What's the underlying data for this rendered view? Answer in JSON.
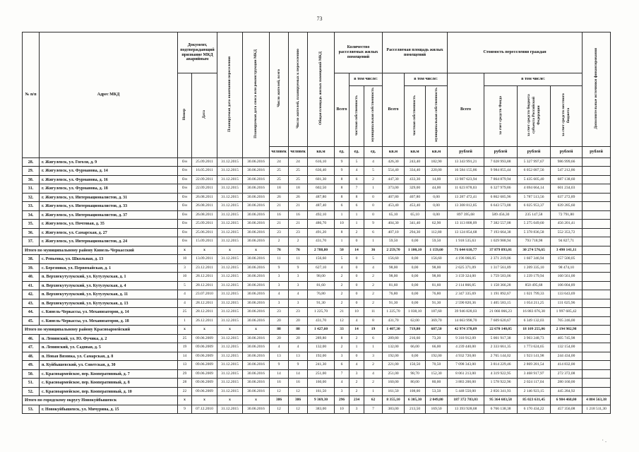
{
  "page_number": "73",
  "scan_artifact": "· .",
  "table": {
    "header": {
      "num": "№ п/п",
      "address": "Адрес МКД",
      "doc_group": "Документ, подтверждающий признание МКД аварийным",
      "doc_number": "Номер",
      "doc_date": "Дата",
      "resettle_end_date": "Планируемая дата окончания переселения",
      "demolition_date": "Планируемая дата сноса или реконструкции МКД",
      "residents_total": "Число жителей, всего",
      "residents_planned": "Число жителей, планируемых к переселению",
      "total_area": "Общая площадь жилых помещений МКД",
      "units_group": "Количество расселяемых жилых помещений",
      "area_group": "Расселяемая площадь жилых помещений",
      "cost_group": "Стоимость переселения граждан",
      "extra_sources": "Дополнительные источники финансирования",
      "total_label": "Всего",
      "including_label": "в том числе:",
      "private_label": "частная собственность",
      "municipal_label": "муниципальная собственность",
      "fund_label": "за счет средств Фонда",
      "region_label": "за счет средств бюджета субъекта Российской Федерации",
      "local_label": "за счет средств местного бюджета",
      "units": [
        "человек",
        "человек",
        "кв.м",
        "ед.",
        "ед.",
        "ед.",
        "кв.м",
        "кв.м",
        "кв.м",
        "рублей",
        "рублей",
        "рублей",
        "рублей",
        "рублей"
      ]
    },
    "rows": [
      {
        "type": "data",
        "cells": [
          "28.",
          "г. Жигулевск, ул. Гоголя, д. 9",
          "б/н",
          "25.09.2011",
          "31.12.2015",
          "30.06.2016",
          "24",
          "24",
          "616,10",
          "9",
          "5",
          "4",
          "426,30",
          "243,40",
          "182,90",
          "13 343 991,21",
          "7 028 993,88",
          "5 327 997,67",
          "986 999,66",
          ""
        ]
      },
      {
        "type": "data",
        "cells": [
          "29.",
          "г. Жигулевск, ул. Фурманова, д. 14",
          "б/н",
          "16.05.2011",
          "31.12.2015",
          "30.06.2016",
          "25",
          "25",
          "636,40",
          "9",
          "4",
          "5",
          "554,40",
          "334,40",
          "220,00",
          "16 584 155,86",
          "9 984 855,44",
          "6 052 087,56",
          "547 212,86",
          ""
        ]
      },
      {
        "type": "data",
        "cells": [
          "30.",
          "г. Жигулевск, ул. Фурманова, д. 16",
          "б/н",
          "22.09.2011",
          "31.12.2015",
          "30.06.2016",
          "25",
          "25",
          "601,30",
          "8",
          "6",
          "2",
          "447,30",
          "433,30",
          "14,00",
          "13 987 623,94",
          "7 864 879,94",
          "5 435 605,40",
          "687 138,60",
          ""
        ]
      },
      {
        "type": "data",
        "cells": [
          "31.",
          "г. Жигулевск, ул. Фурманова, д. 18",
          "б/н",
          "22.09.2011",
          "31.12.2015",
          "30.06.2016",
          "18",
          "18",
          "602,50",
          "8",
          "7",
          "1",
          "373,00",
          "329,00",
          "44,00",
          "11 623 878,03",
          "6 327 979,86",
          "4 694 664,14",
          "601 234,03",
          ""
        ]
      },
      {
        "type": "data",
        "cells": [
          "32.",
          "г. Жигулевск, ул. Интернационалистов, д. 31",
          "б/н",
          "26.08.2011",
          "31.12.2015",
          "30.06.2016",
          "26",
          "26",
          "487,80",
          "8",
          "8",
          "0",
          "407,80",
          "407,80",
          "0,00",
          "13 287 472,41",
          "6 862 685,96",
          "5 787 513,56",
          "637 272,89",
          ""
        ]
      },
      {
        "type": "data",
        "cells": [
          "33.",
          "г. Жигулевск, ул. Интернационалистов, д. 33",
          "б/н",
          "26.08.2011",
          "31.12.2015",
          "30.06.2016",
          "21",
          "21",
          "487,40",
          "6",
          "6",
          "0",
          "453,40",
          "453,40",
          "0,00",
          "13 308 812,85",
          "6 643 573,88",
          "6 025 953,37",
          "639 285,60",
          ""
        ]
      },
      {
        "type": "data",
        "cells": [
          "34.",
          "г. Жигулевск, ул. Интернационалистов, д. 37",
          "б/н",
          "26.08.2011",
          "31.12.2015",
          "30.06.2016",
          "16",
          "16",
          "492,10",
          "1",
          "1",
          "0",
          "65,10",
          "65,10",
          "0,00",
          "897 395,68",
          "589 456,30",
          "235 147,58",
          "72 791,80",
          ""
        ]
      },
      {
        "type": "data",
        "cells": [
          "35.",
          "г. Жигулевск, ул. Почтовая, д. 35",
          "б/н",
          "25.09.2011",
          "31.12.2015",
          "30.06.2016",
          "21",
          "21",
          "486,70",
          "10",
          "1",
          "9",
          "404,30",
          "341,40",
          "62,90",
          "13 113 808,09",
          "7 382 557,08",
          "5 275 049,60",
          "456 201,41",
          ""
        ]
      },
      {
        "type": "data",
        "cells": [
          "36.",
          "г. Жигулевск, ул. Самарская, д. 27",
          "б/н",
          "25.06.2011",
          "31.12.2015",
          "30.06.2016",
          "23",
          "23",
          "491,20",
          "8",
          "2",
          "6",
          "407,10",
          "294,30",
          "112,80",
          "13 124 854,68",
          "7 193 664,38",
          "5 378 836,58",
          "552 353,72",
          ""
        ]
      },
      {
        "type": "data",
        "cells": [
          "37.",
          "г. Жигулевск, ул. Интернационалистов, д. 24",
          "б/н",
          "15.09.2011",
          "31.12.2015",
          "30.06.2016",
          "2",
          "2",
          "431,70",
          "1",
          "0",
          "1",
          "59,50",
          "0,00",
          "59,50",
          "1 918 535,63",
          "1 029 988,94",
          "793 718,98",
          "94 827,71",
          ""
        ]
      },
      {
        "type": "total",
        "cells": [
          "Итого по муниципальному району Кинель-Черкасский",
          "х",
          "х",
          "х",
          "х",
          "76",
          "76",
          "2 788,80",
          "50",
          "14",
          "36",
          "2 259,70",
          "1 100,10",
          "1 159,60",
          "71 644 610,77",
          "37 879 893,01",
          "30 274 576,65",
          "3 490 141,11",
          ""
        ]
      },
      {
        "type": "data",
        "cells": [
          "38.",
          "с. Репьевка, ул. Школьная, д. 13",
          "10",
          "13.09.2011",
          "31.12.2015",
          "30.06.2016",
          "11",
          "11",
          "156,60",
          "5",
          "0",
          "5",
          "156,60",
          "0,00",
          "156,60",
          "4 196 066,05",
          "2 371 219,06",
          "1 667 346,94",
          "157 500,05",
          ""
        ]
      },
      {
        "type": "data",
        "cells": [
          "39.",
          "с. Березняки, ул. Первомайская, д. 1",
          "3",
          "23.12.2011",
          "31.12.2015",
          "30.06.2016",
          "9",
          "9",
          "627,10",
          "4",
          "0",
          "4",
          "98,00",
          "0,00",
          "98,00",
          "2 625 371,09",
          "1 317 561,89",
          "1 209 335,10",
          "98 474,10",
          ""
        ]
      },
      {
        "type": "data",
        "cells": [
          "40.",
          "п. Верхнекутулукский, ул. Кутулукская, д. 1",
          "10",
          "28.12.2011",
          "31.12.2015",
          "30.06.2016",
          "3",
          "3",
          "98,00",
          "2",
          "0",
          "2",
          "98,00",
          "0,00",
          "98,00",
          "3 159 324,00",
          "1 759 583,06",
          "1 239 179,94",
          "160 561,00",
          ""
        ]
      },
      {
        "type": "data",
        "cells": [
          "41.",
          "п. Верхнекутулукский, ул. Кутулукская, д. 4",
          "5",
          "28.12.2011",
          "31.12.2015",
          "30.06.2016",
          "3",
          "3",
          "81,60",
          "2",
          "0",
          "2",
          "81,60",
          "0,00",
          "81,60",
          "2 114 866,85",
          "1 158 366,28",
          "850 495,68",
          "106 004,89",
          ""
        ]
      },
      {
        "type": "data",
        "cells": [
          "42.",
          "п. Верхнекутулукский, ул. Кутулукская, д. 11",
          "4",
          "23.07.2010",
          "31.12.2015",
          "30.06.2016",
          "4",
          "4",
          "76,80",
          "2",
          "0",
          "2",
          "76,80",
          "0,00",
          "76,80",
          "2 347 335,69",
          "1 191 892,67",
          "1 021 799,33",
          "133 643,69",
          ""
        ]
      },
      {
        "type": "data",
        "cells": [
          "43.",
          "п. Верхнекутулукский, ул. Кутулукская, д. 13",
          "4",
          "28.12.2011",
          "31.12.2015",
          "30.06.2016",
          "3",
          "3",
          "91,30",
          "2",
          "0",
          "2",
          "91,30",
          "0,00",
          "91,30",
          "2 590 820,36",
          "1 405 583,15",
          "1 054 211,25",
          "131 025,96",
          ""
        ]
      },
      {
        "type": "data",
        "cells": [
          "44.",
          "с. Кинель-Черкассы, ул. Механизаторов, д. 14",
          "25",
          "28.12.2011",
          "31.12.2015",
          "30.06.2016",
          "23",
          "23",
          "1 225,70",
          "21",
          "10",
          "11",
          "1 225,70",
          "1 038,10",
          "187,60",
          "39 946 828,03",
          "21 066 066,23",
          "16 883 076,38",
          "1 997 685,42",
          ""
        ]
      },
      {
        "type": "data",
        "cells": [
          "45.",
          "с. Кинель-Черкассы, ул. Механизаторов, д. 18",
          "1",
          "26.12.2011",
          "31.12.2015",
          "30.06.2016",
          "20",
          "20",
          "431,70",
          "12",
          "4",
          "8",
          "431,70",
          "62,00",
          "369,70",
          "14 663 998,70",
          "7 609 620,67",
          "6 349 132,03",
          "705 246,00",
          ""
        ]
      },
      {
        "type": "total",
        "cells": [
          "Итого по муниципальному району Красноармейский",
          "х",
          "х",
          "х",
          "х",
          "88",
          "88",
          "1 427,60",
          "33",
          "14",
          "19",
          "1 407,30",
          "719,80",
          "687,50",
          "42 974 378,09",
          "22 670 140,05",
          "18 109 255,06",
          "2 194 982,98",
          ""
        ]
      },
      {
        "type": "data",
        "cells": [
          "46.",
          "п. Ленинский, ул. Ю. Фучика, д. 2",
          "25",
          "09.06.2009",
          "31.12.2015",
          "30.06.2016",
          "20",
          "20",
          "289,80",
          "8",
          "2",
          "6",
          "289,80",
          "216,60",
          "73,20",
          "9 310 912,09",
          "5 001 917,38",
          "3 903 248,73",
          "405 745,98",
          ""
        ]
      },
      {
        "type": "data",
        "cells": [
          "47.",
          "п. Ленинский, ул. Садовая, д. 5",
          "19",
          "09.06.2009",
          "31.12.2015",
          "30.06.2016",
          "4",
          "4",
          "132,00",
          "2",
          "1",
          "1",
          "132,00",
          "66,00",
          "66,00",
          "4 239 440,00",
          "2 333 661,35",
          "1 773 624,65",
          "132 154,00",
          ""
        ]
      },
      {
        "type": "data",
        "cells": [
          "48.",
          "п. Новая Вязовка, ул. Самарская, д. 8",
          "14",
          "09.06.2009",
          "31.12.2015",
          "30.06.2016",
          "13",
          "13",
          "192,00",
          "3",
          "0",
          "3",
          "192,00",
          "0,00",
          "192,00",
          "4 932 720,00",
          "2 765 144,02",
          "1 923 141,98",
          "244 434,00",
          ""
        ]
      },
      {
        "type": "data",
        "cells": [
          "49.",
          "п. Куйбышевский, ул. Советская, д. 30",
          "13",
          "09.06.2009",
          "31.12.2015",
          "30.06.2016",
          "9",
          "9",
          "241,30",
          "6",
          "4",
          "2",
          "221,00",
          "150,50",
          "70,50",
          "7 098 343,00",
          "3 814 229,46",
          "2 869 281,54",
          "414 832,00",
          ""
        ]
      },
      {
        "type": "data",
        "cells": [
          "50.",
          "с. Красноармейское, пер. Кооперативный, д. 7",
          "29",
          "09.06.2009",
          "31.12.2015",
          "30.06.2016",
          "14",
          "14",
          "251,00",
          "7",
          "3",
          "4",
          "251,00",
          "98,70",
          "152,30",
          "8 061 213,00",
          "4 319 922,95",
          "3 468 917,97",
          "272 372,08",
          ""
        ]
      },
      {
        "type": "data",
        "cells": [
          "51.",
          "с. Красноармейское, пер. Кооперативный, д. 8",
          "28",
          "09.06.2009",
          "31.12.2015",
          "30.06.2016",
          "16",
          "16",
          "160,00",
          "4",
          "2",
          "2",
          "160,00",
          "80,00",
          "80,00",
          "3 883 200,00",
          "1 578 922,96",
          "2 024 117,04",
          "280 160,00",
          ""
        ]
      },
      {
        "type": "data",
        "cells": [
          "52.",
          "с. Красноармейское, пер. Кооперативный, д. 10",
          "22",
          "09.06.2009",
          "31.12.2015",
          "30.06.2016",
          "12",
          "12",
          "161,50",
          "3",
          "2",
          "1",
          "161,50",
          "108,00",
          "53,50",
          "5 448 550,00",
          "2 856 341,93",
          "2 146 923,15",
          "445 284,92",
          ""
        ]
      },
      {
        "type": "total",
        "cells": [
          "Итого по городскому округу Новокуйбышевск",
          "х",
          "х",
          "х",
          "х",
          "386",
          "386",
          "9 369,30",
          "296",
          "234",
          "62",
          "8 355,10",
          "6 305,30",
          "2 049,80",
          "187 372 783,03",
          "95 364 683,58",
          "85 023 631,45",
          "6 984 468,00",
          "4 884 563,38"
        ]
      },
      {
        "type": "data",
        "cells": [
          "53.",
          "г. Новокуйбышевск, ул. Мичурина, д. 15",
          "9",
          "07.12.2010",
          "31.12.2015",
          "30.06.2016",
          "12",
          "12",
          "383,00",
          "10",
          "3",
          "7",
          "383,00",
          "213,50",
          "169,50",
          "13 393 928,68",
          "6 766 138,38",
          "6 170 434,22",
          "457 356,08",
          "1 218 511,30"
        ]
      }
    ]
  }
}
